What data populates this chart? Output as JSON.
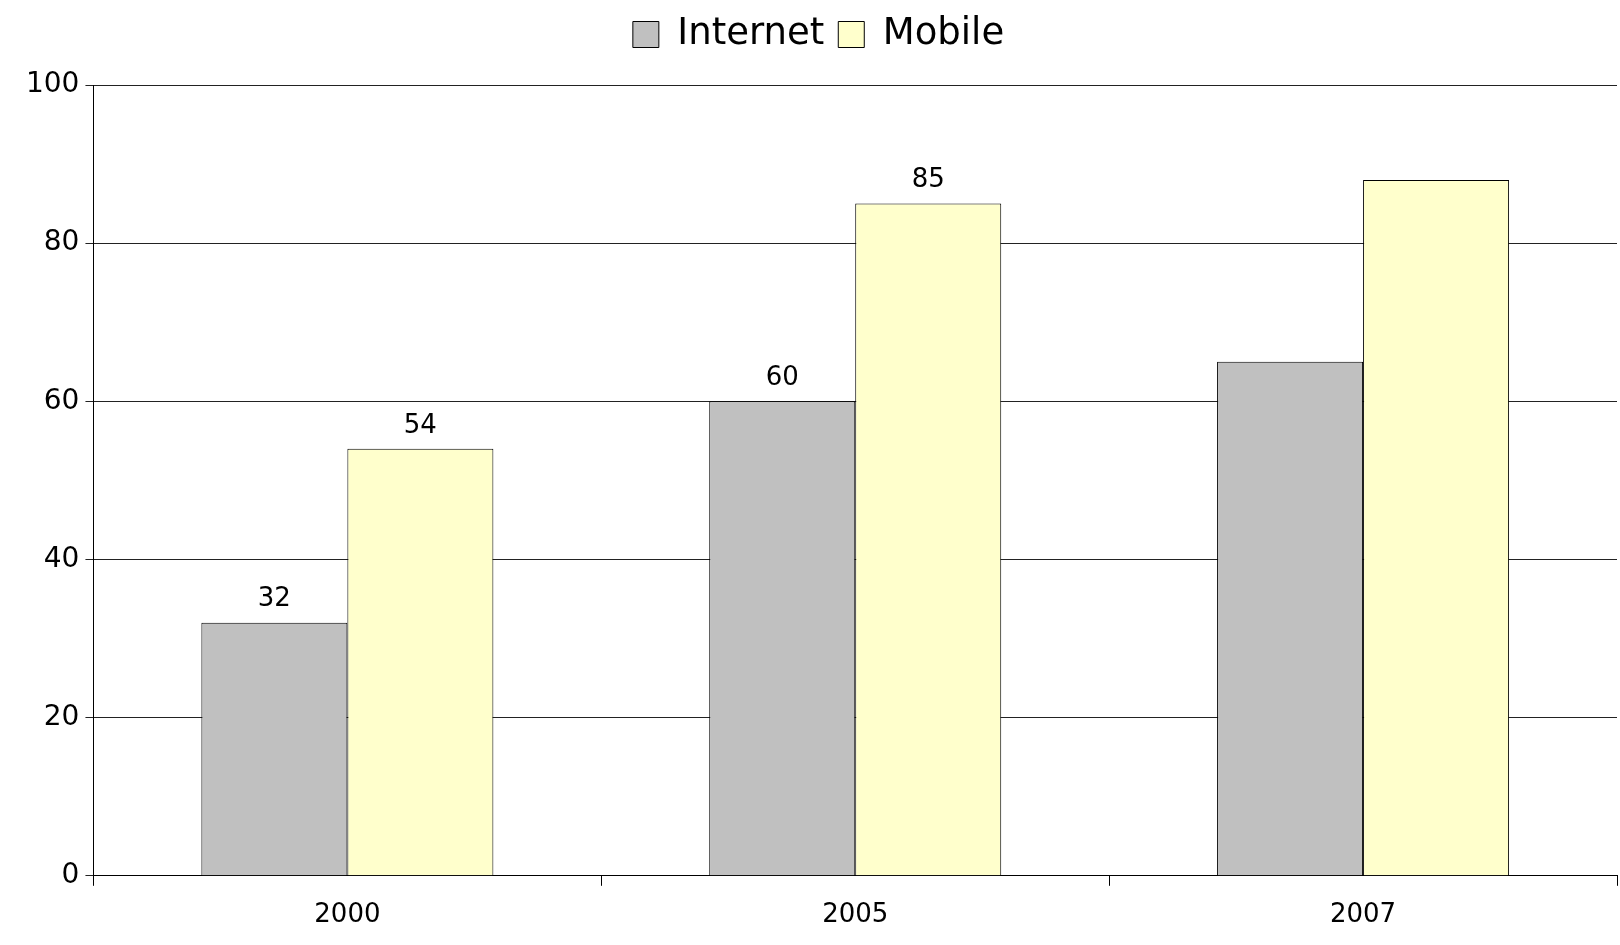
{
  "chart_data": {
    "type": "bar",
    "categories": [
      "2000",
      "2005",
      "2007"
    ],
    "series": [
      {
        "name": "Internet",
        "color": "#c0c0c0",
        "values": [
          32,
          60,
          65
        ],
        "value_labels": [
          "32",
          "60",
          null
        ]
      },
      {
        "name": "Mobile",
        "color": "#ffffcc",
        "values": [
          54,
          85,
          88
        ],
        "value_labels": [
          "54",
          "85",
          null
        ]
      }
    ],
    "ylim": [
      0,
      100
    ],
    "yticks": [
      0,
      20,
      40,
      60,
      80,
      100
    ],
    "grid": "y",
    "legend": "top"
  }
}
